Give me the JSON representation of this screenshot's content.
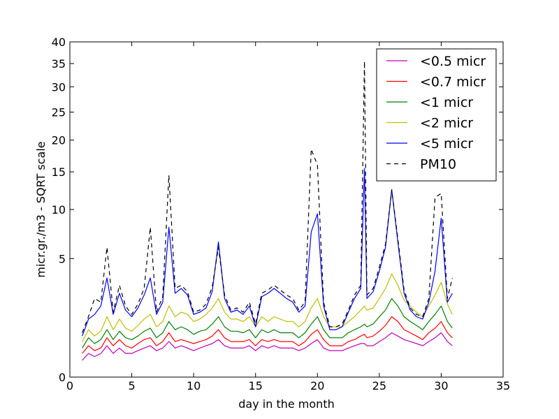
{
  "chart_data": {
    "type": "line",
    "title": "",
    "xlabel": "day in the month",
    "ylabel": "micr.gr./m3 - SQRT scale",
    "xlim": [
      0,
      35
    ],
    "ylim": [
      0,
      40
    ],
    "y_scale": "sqrt",
    "grid": false,
    "legend_position": "top-right",
    "x_ticks": [
      0,
      5,
      10,
      15,
      20,
      25,
      30,
      35
    ],
    "y_ticks": [
      0,
      5,
      10,
      15,
      20,
      25,
      30,
      35,
      40
    ],
    "x_tick_labels": [
      "0",
      "5",
      "10",
      "15",
      "20",
      "25",
      "30",
      "35"
    ],
    "y_tick_labels": [
      "0",
      "5",
      "10",
      "15",
      "20",
      "25",
      "30",
      "35",
      "40"
    ],
    "x": [
      1.0,
      1.5,
      2.0,
      2.5,
      3.0,
      3.5,
      4.0,
      4.5,
      5.0,
      5.5,
      6.0,
      6.5,
      7.0,
      7.5,
      8.0,
      8.5,
      9.0,
      9.5,
      10.0,
      10.5,
      11.0,
      11.5,
      12.0,
      12.5,
      13.0,
      13.5,
      14.0,
      14.5,
      15.0,
      15.5,
      16.0,
      16.5,
      17.0,
      17.5,
      18.0,
      18.5,
      19.0,
      19.5,
      20.0,
      20.5,
      21.0,
      21.5,
      22.0,
      22.5,
      23.0,
      23.5,
      23.8,
      24.0,
      24.5,
      25.0,
      25.5,
      26.0,
      26.5,
      27.0,
      27.5,
      28.0,
      28.5,
      29.0,
      29.5,
      30.0,
      30.5,
      30.9
    ],
    "series": [
      {
        "name": "<0.5 micr",
        "color": "#bf00bf",
        "dash": false,
        "values": [
          0.1,
          0.2,
          0.15,
          0.2,
          0.35,
          0.2,
          0.3,
          0.2,
          0.2,
          0.25,
          0.3,
          0.35,
          0.25,
          0.3,
          0.45,
          0.3,
          0.35,
          0.3,
          0.25,
          0.3,
          0.35,
          0.4,
          0.5,
          0.35,
          0.3,
          0.3,
          0.3,
          0.35,
          0.25,
          0.35,
          0.3,
          0.35,
          0.3,
          0.3,
          0.3,
          0.25,
          0.3,
          0.4,
          0.5,
          0.3,
          0.25,
          0.25,
          0.25,
          0.3,
          0.35,
          0.4,
          0.4,
          0.35,
          0.35,
          0.45,
          0.55,
          0.7,
          0.6,
          0.5,
          0.45,
          0.4,
          0.35,
          0.45,
          0.55,
          0.7,
          0.45,
          0.35
        ]
      },
      {
        "name": "<0.7 micr",
        "color": "#ff0000",
        "dash": false,
        "values": [
          0.2,
          0.35,
          0.25,
          0.3,
          0.55,
          0.35,
          0.5,
          0.35,
          0.3,
          0.4,
          0.5,
          0.55,
          0.35,
          0.45,
          0.7,
          0.45,
          0.5,
          0.45,
          0.4,
          0.45,
          0.5,
          0.6,
          0.8,
          0.55,
          0.45,
          0.45,
          0.45,
          0.5,
          0.35,
          0.5,
          0.45,
          0.5,
          0.45,
          0.45,
          0.45,
          0.35,
          0.45,
          0.65,
          0.8,
          0.5,
          0.35,
          0.35,
          0.35,
          0.45,
          0.5,
          0.6,
          0.65,
          0.55,
          0.6,
          0.75,
          0.95,
          1.3,
          1.1,
          0.8,
          0.7,
          0.6,
          0.5,
          0.7,
          0.85,
          1.1,
          0.7,
          0.55
        ]
      },
      {
        "name": "<1 micr",
        "color": "#008000",
        "dash": false,
        "values": [
          0.3,
          0.55,
          0.4,
          0.5,
          0.8,
          0.5,
          0.75,
          0.55,
          0.5,
          0.6,
          0.75,
          0.85,
          0.55,
          0.7,
          1.1,
          0.8,
          0.9,
          0.8,
          0.65,
          0.75,
          0.8,
          1.0,
          1.3,
          0.9,
          0.75,
          0.75,
          0.7,
          0.8,
          0.55,
          0.8,
          0.7,
          0.8,
          0.7,
          0.7,
          0.7,
          0.55,
          0.7,
          1.0,
          1.3,
          0.8,
          0.55,
          0.55,
          0.55,
          0.7,
          0.8,
          0.9,
          1.0,
          0.9,
          1.0,
          1.3,
          1.6,
          2.2,
          1.8,
          1.3,
          1.1,
          0.95,
          0.8,
          1.1,
          1.4,
          1.8,
          1.1,
          0.85
        ]
      },
      {
        "name": "<2 micr",
        "color": "#bfbf00",
        "dash": false,
        "values": [
          0.45,
          0.8,
          0.6,
          0.75,
          1.3,
          0.8,
          1.2,
          0.85,
          0.75,
          0.95,
          1.2,
          1.4,
          0.9,
          1.1,
          1.8,
          1.3,
          1.5,
          1.4,
          1.1,
          1.2,
          1.4,
          1.7,
          2.2,
          1.5,
          1.2,
          1.2,
          1.1,
          1.3,
          0.9,
          1.3,
          1.1,
          1.3,
          1.2,
          1.1,
          1.1,
          0.9,
          1.1,
          1.7,
          2.2,
          1.3,
          0.9,
          0.9,
          0.9,
          1.1,
          1.3,
          1.6,
          1.8,
          1.6,
          1.7,
          2.2,
          2.8,
          3.8,
          3.0,
          2.1,
          1.8,
          1.5,
          1.3,
          1.8,
          2.4,
          3.2,
          1.9,
          1.4
        ]
      },
      {
        "name": "<5 micr",
        "color": "#0000ff",
        "dash": false,
        "values": [
          0.6,
          1.2,
          1.4,
          1.8,
          3.5,
          1.4,
          2.5,
          1.6,
          1.3,
          1.7,
          2.4,
          3.5,
          1.4,
          2.0,
          8.0,
          2.5,
          2.8,
          2.4,
          1.4,
          1.5,
          1.7,
          2.6,
          6.5,
          2.2,
          1.5,
          1.6,
          1.4,
          1.8,
          0.9,
          2.3,
          2.5,
          2.8,
          2.5,
          2.2,
          2.0,
          1.5,
          1.8,
          7.5,
          9.5,
          1.8,
          0.8,
          0.8,
          0.9,
          1.5,
          2.2,
          2.8,
          15.5,
          2.2,
          2.6,
          4.0,
          6.0,
          12.5,
          6.5,
          2.5,
          1.6,
          1.3,
          1.2,
          2.0,
          4.0,
          9.0,
          2.0,
          2.5
        ]
      },
      {
        "name": "PM10",
        "color": "#000000",
        "dash": true,
        "values": [
          0.7,
          1.3,
          2.2,
          2.0,
          6.0,
          1.5,
          3.0,
          1.8,
          1.4,
          1.9,
          2.8,
          8.0,
          1.5,
          2.3,
          14.5,
          2.8,
          3.0,
          2.6,
          1.5,
          1.6,
          1.9,
          2.9,
          6.0,
          2.4,
          1.6,
          1.7,
          1.5,
          2.0,
          1.0,
          2.5,
          2.7,
          3.0,
          2.7,
          2.4,
          2.2,
          1.6,
          2.0,
          18.5,
          16.0,
          2.0,
          0.9,
          0.9,
          1.0,
          1.6,
          2.4,
          3.0,
          35.5,
          2.4,
          2.8,
          4.3,
          6.3,
          12.5,
          6.8,
          2.7,
          1.7,
          1.4,
          1.3,
          2.2,
          11.5,
          12.0,
          2.2,
          3.5
        ]
      }
    ]
  }
}
